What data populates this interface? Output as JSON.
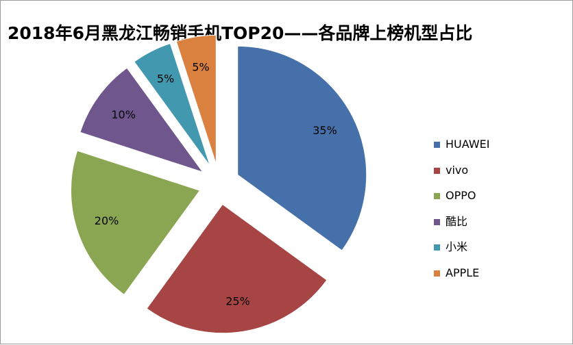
{
  "chart_data": {
    "type": "pie",
    "title": "2018年6月黑龙江畅销手机TOP20——各品牌上榜机型占比",
    "exploded": true,
    "legend": "right",
    "series": [
      {
        "name": "HUAWEI",
        "value": 35,
        "label": "35%",
        "color": "#4670a9"
      },
      {
        "name": "vivo",
        "value": 25,
        "label": "25%",
        "color": "#a64543"
      },
      {
        "name": "OPPO",
        "value": 20,
        "label": "20%",
        "color": "#8ba652"
      },
      {
        "name": "酷比",
        "value": 10,
        "label": "10%",
        "color": "#6f578e"
      },
      {
        "name": "小米",
        "value": 5,
        "label": "5%",
        "color": "#4298ae"
      },
      {
        "name": "APPLE",
        "value": 5,
        "label": "5%",
        "color": "#da8140"
      }
    ]
  }
}
